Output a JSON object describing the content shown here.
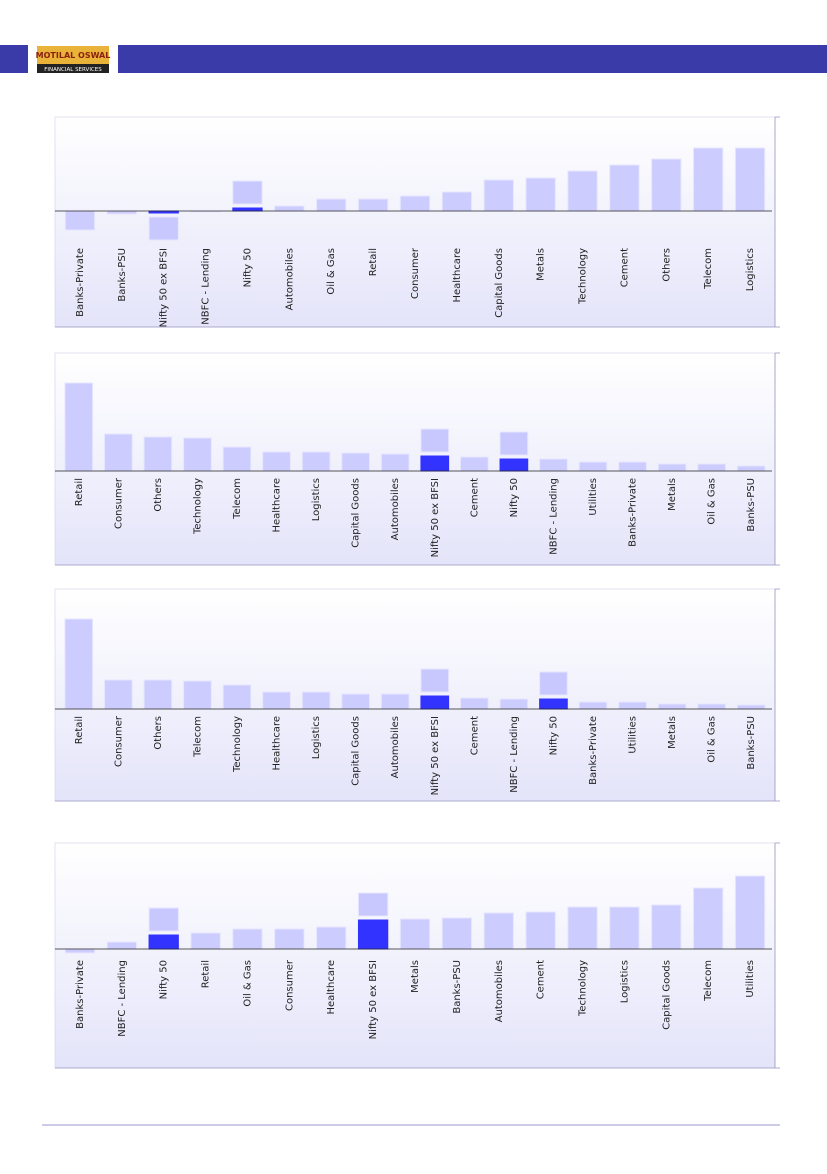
{
  "header": {
    "logo_name": "MOTILAL OSWAL",
    "logo_sub": "FINANCIAL SERVICES"
  },
  "chart_data": [
    {
      "type": "bar",
      "categories": [
        "Banks-Private",
        "Banks-PSU",
        "Nifty 50 ex BFSI",
        "NBFC - Lending",
        "Nifty 50",
        "Automobiles",
        "Oil & Gas",
        "Retail",
        "Consumer",
        "Healthcare",
        "Capital Goods",
        "Metals",
        "Technology",
        "Cement",
        "Others",
        "Telecom",
        "Logistics"
      ],
      "values": [
        -19,
        -3,
        -2,
        -1,
        3,
        5,
        12,
        12,
        15,
        19,
        31,
        33,
        40,
        46,
        52,
        63,
        63
      ],
      "colors": [
        "#ccccff",
        "#ccccff",
        "#3333ff",
        "#ccccff",
        "#3333ff",
        "#ccccff",
        "#ccccff",
        "#ccccff",
        "#ccccff",
        "#ccccff",
        "#ccccff",
        "#ccccff",
        "#ccccff",
        "#ccccff",
        "#ccccff",
        "#ccccff",
        "#ccccff"
      ],
      "ylim": [
        -30,
        94
      ]
    },
    {
      "type": "bar",
      "categories": [
        "Retail",
        "Consumer",
        "Others",
        "Technology",
        "Telecom",
        "Healthcare",
        "Logistics",
        "Capital Goods",
        "Automobiles",
        "Nifty 50 ex BFSI",
        "Cement",
        "Nifty 50",
        "NBFC - Lending",
        "Utilities",
        "Banks-Private",
        "Metals",
        "Oil & Gas",
        "Banks-PSU"
      ],
      "values": [
        88,
        37,
        34,
        33,
        24,
        19,
        19,
        18,
        17,
        15,
        14,
        12,
        12,
        9,
        9,
        7,
        7,
        5
      ],
      "colors": [
        "#ccccff",
        "#ccccff",
        "#ccccff",
        "#ccccff",
        "#ccccff",
        "#ccccff",
        "#ccccff",
        "#ccccff",
        "#ccccff",
        "#3333ff",
        "#ccccff",
        "#3333ff",
        "#ccccff",
        "#ccccff",
        "#ccccff",
        "#ccccff",
        "#ccccff",
        "#ccccff"
      ],
      "ylim": [
        0,
        118
      ]
    },
    {
      "type": "bar",
      "categories": [
        "Retail",
        "Consumer",
        "Others",
        "Telecom",
        "Technology",
        "Healthcare",
        "Logistics",
        "Capital Goods",
        "Automobiles",
        "Nifty 50 ex BFSI",
        "Cement",
        "NBFC - Lending",
        "Nifty 50",
        "Banks-Private",
        "Utilities",
        "Metals",
        "Oil & Gas",
        "Banks-PSU"
      ],
      "values": [
        90,
        29,
        29,
        28,
        24,
        17,
        17,
        15,
        15,
        13,
        11,
        10,
        10,
        7,
        7,
        5,
        5,
        4
      ],
      "colors": [
        "#ccccff",
        "#ccccff",
        "#ccccff",
        "#ccccff",
        "#ccccff",
        "#ccccff",
        "#ccccff",
        "#ccccff",
        "#ccccff",
        "#3333ff",
        "#ccccff",
        "#ccccff",
        "#3333ff",
        "#ccccff",
        "#ccccff",
        "#ccccff",
        "#ccccff",
        "#ccccff"
      ],
      "ylim": [
        0,
        120
      ]
    },
    {
      "type": "bar",
      "categories": [
        "Banks-Private",
        "NBFC - Lending",
        "Nifty 50",
        "Retail",
        "Oil & Gas",
        "Consumer",
        "Healthcare",
        "Nifty 50 ex BFSI",
        "Metals",
        "Banks-PSU",
        "Automobiles",
        "Cement",
        "Technology",
        "Logistics",
        "Capital Goods",
        "Telecom",
        "Utilities"
      ],
      "values": [
        -4,
        7,
        14,
        16,
        20,
        20,
        22,
        29,
        30,
        31,
        36,
        37,
        42,
        42,
        44,
        61,
        73
      ],
      "colors": [
        "#ccccff",
        "#ccccff",
        "#3333ff",
        "#ccccff",
        "#ccccff",
        "#ccccff",
        "#ccccff",
        "#3333ff",
        "#ccccff",
        "#ccccff",
        "#ccccff",
        "#ccccff",
        "#ccccff",
        "#ccccff",
        "#ccccff",
        "#ccccff",
        "#ccccff"
      ],
      "ylim": [
        -4,
        106
      ]
    }
  ]
}
